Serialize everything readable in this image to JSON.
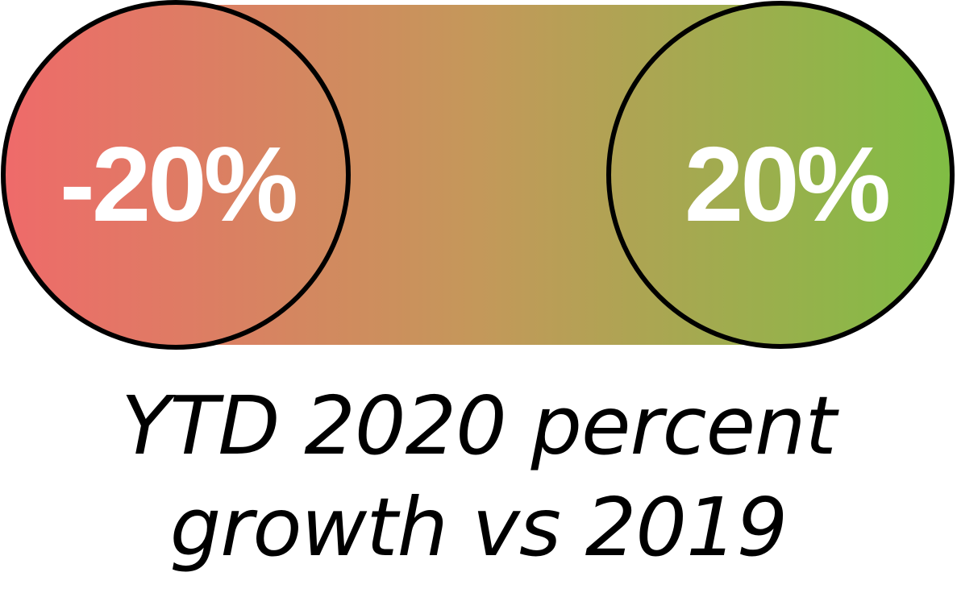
{
  "scale": {
    "min_label": "-20%",
    "max_label": "20%",
    "min_color": "#ef6a6a",
    "mid_color": "#c4985a",
    "max_color": "#7fbe44",
    "outline_color": "#000000",
    "label_color": "#ffffff"
  },
  "caption": {
    "line1": "YTD 2020 percent",
    "line2": "growth vs 2019"
  }
}
